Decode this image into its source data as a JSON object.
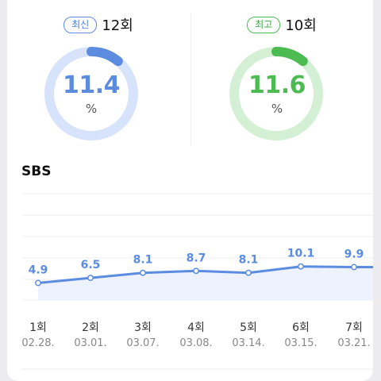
{
  "stats": {
    "latest": {
      "badge": "최신",
      "count": "12회",
      "value": "11.4",
      "unit": "%",
      "color": "#5b8ce0",
      "track": "#d7e3fa"
    },
    "best": {
      "badge": "최고",
      "count": "10회",
      "value": "11.6",
      "unit": "%",
      "color": "#4cbc52",
      "track": "#d4f0d4"
    }
  },
  "section_title": "SBS",
  "chart_data": {
    "type": "line",
    "title": "SBS",
    "x": [
      "1회",
      "2회",
      "3회",
      "4회",
      "5회",
      "6회",
      "7회"
    ],
    "dates": [
      "02.28.",
      "03.01.",
      "03.07.",
      "03.08.",
      "03.14.",
      "03.15.",
      "03.21."
    ],
    "series": [
      {
        "values": [
          4.9,
          6.5,
          8.1,
          8.7,
          8.1,
          10.1,
          9.9
        ]
      }
    ],
    "value_labels": [
      "4.9",
      "6.5",
      "8.1",
      "8.7",
      "8.1",
      "10.1",
      "9.9"
    ],
    "grid": true,
    "line_color": "#5b8ce0",
    "area_color": "#eef2ff"
  }
}
